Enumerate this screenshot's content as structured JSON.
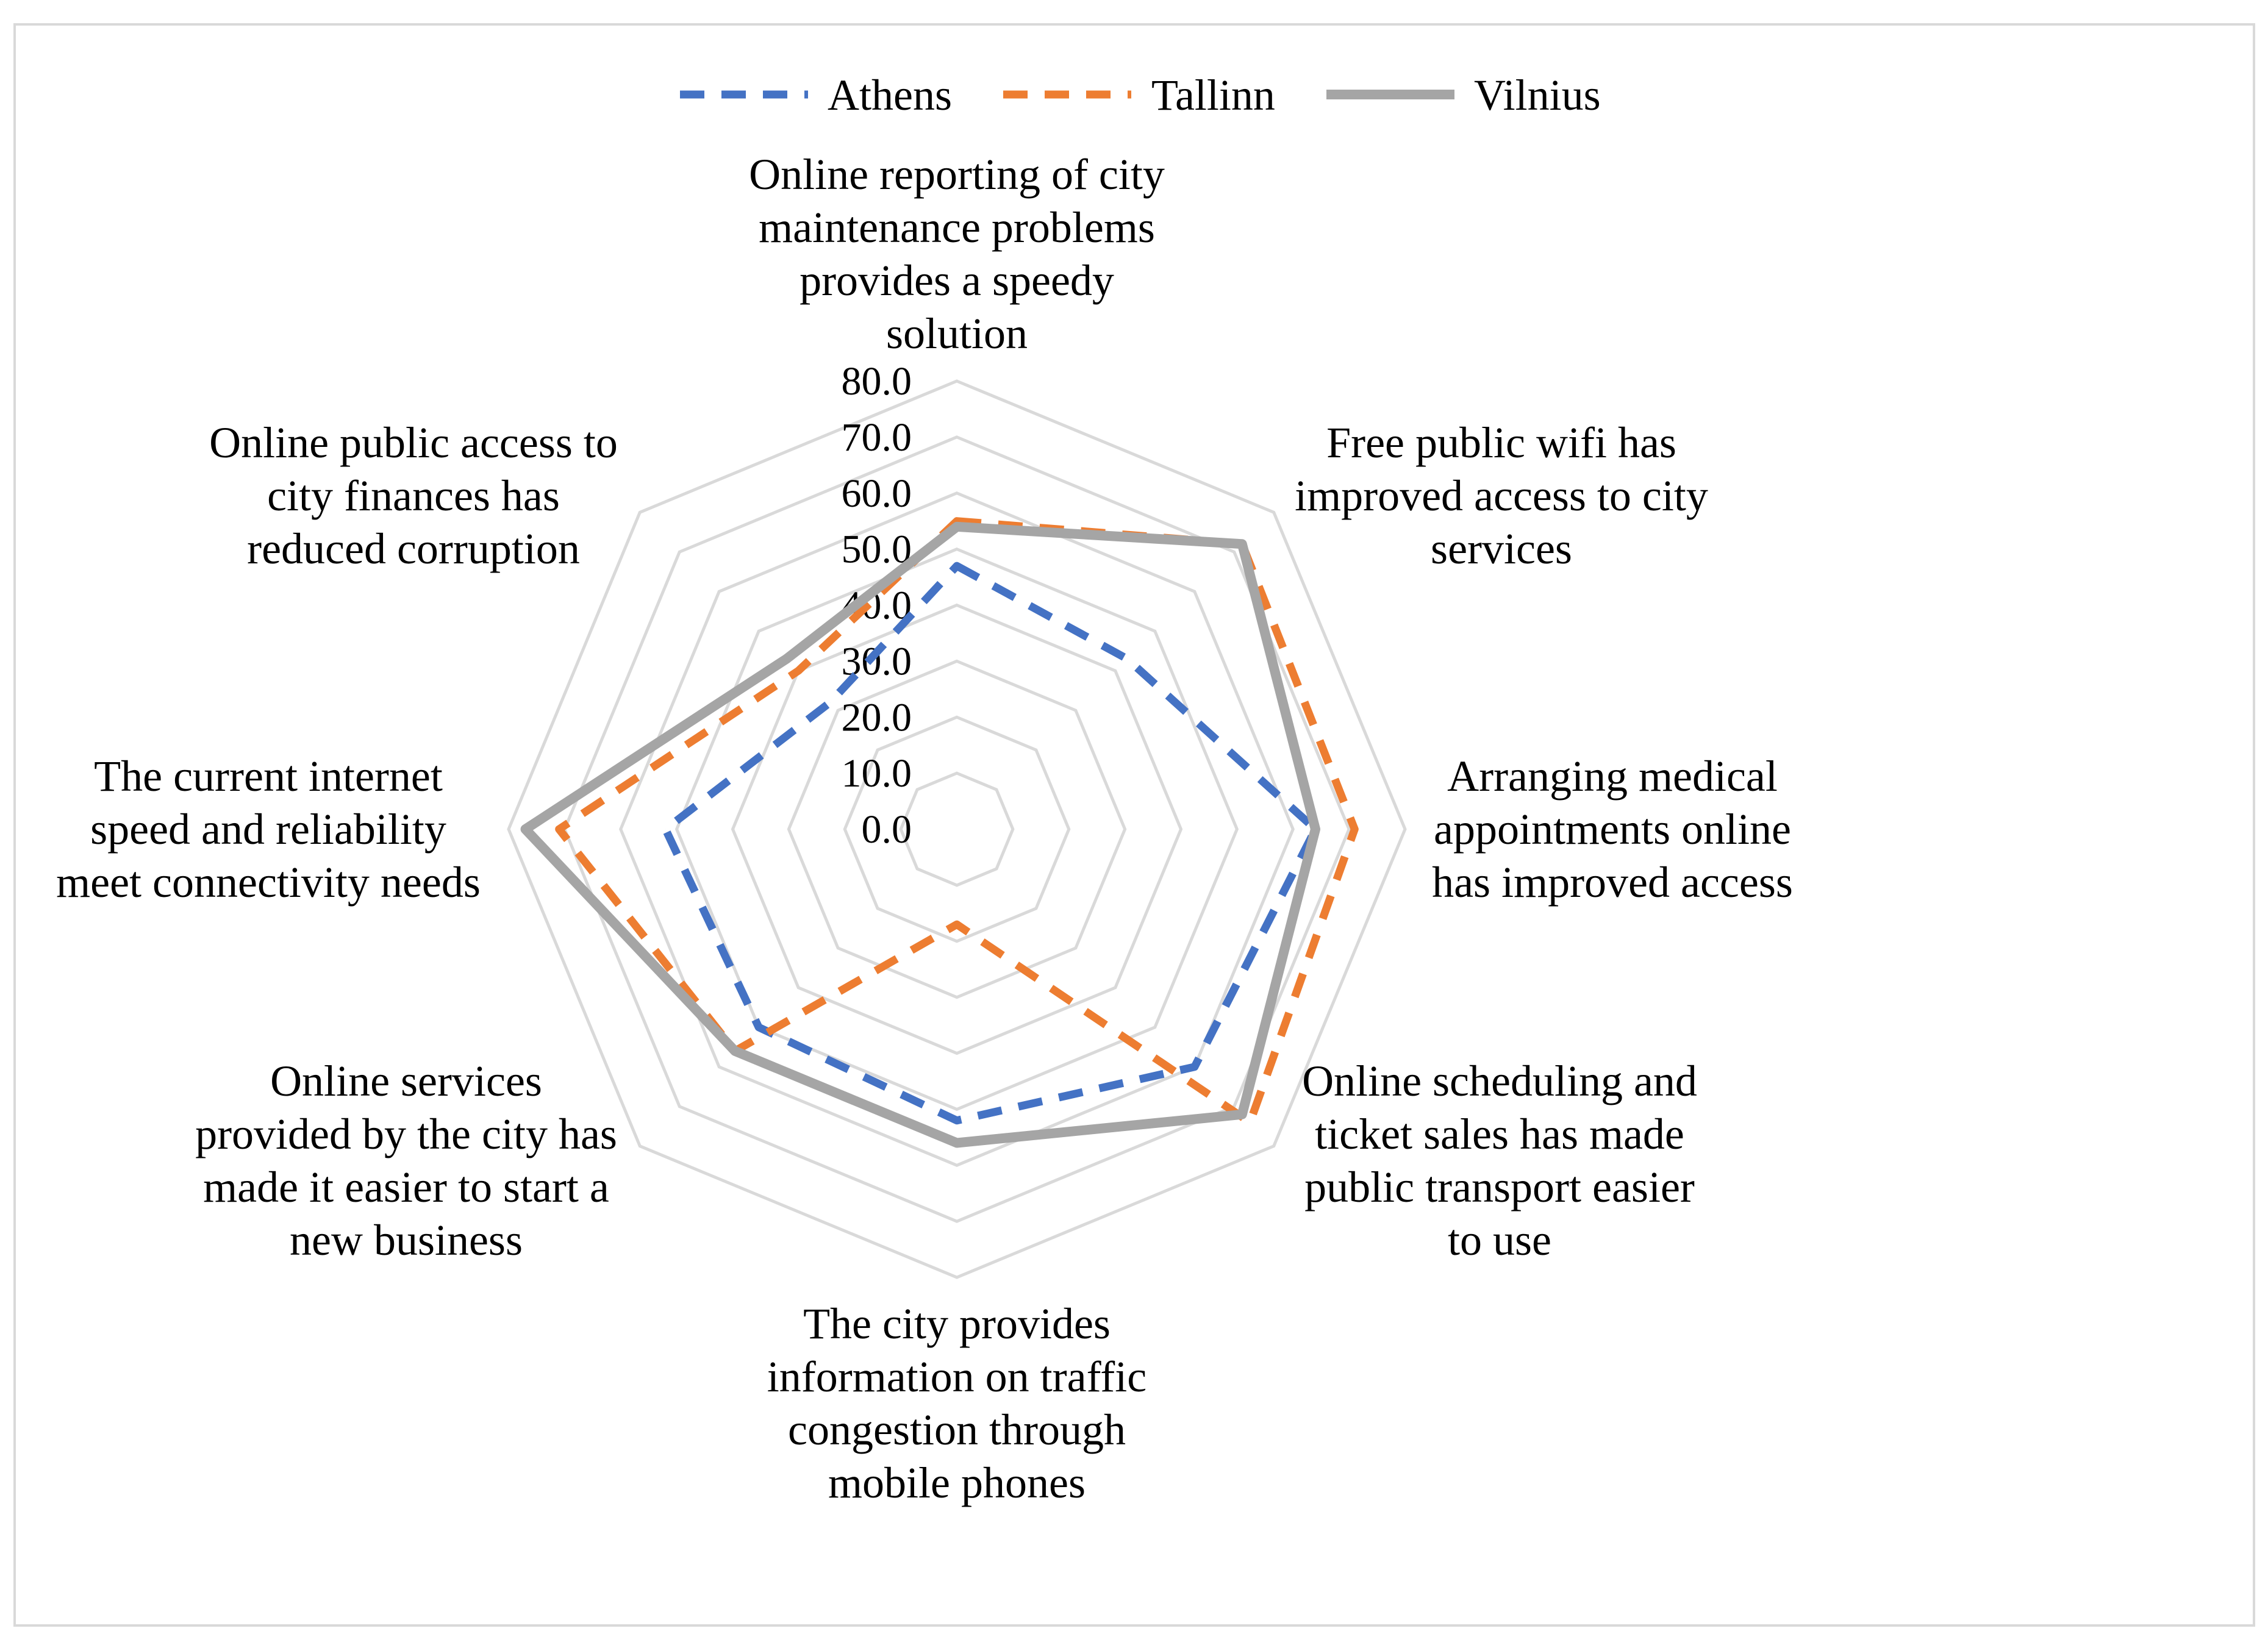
{
  "chart_data": {
    "type": "radar",
    "title": "",
    "categories": [
      [
        "Online reporting of city",
        "maintenance problems",
        "provides a speedy",
        "solution"
      ],
      [
        "Free public wifi has",
        "improved access to city",
        "services"
      ],
      [
        "Arranging medical",
        "appointments online",
        "has improved access"
      ],
      [
        "Online scheduling and",
        "ticket sales has made",
        "public transport easier",
        "to use"
      ],
      [
        "The city provides",
        "information on traffic",
        "congestion through",
        "mobile phones"
      ],
      [
        "Online services",
        "provided by the city has",
        "made it easier to start a",
        "new business"
      ],
      [
        "The current internet",
        "speed and reliability",
        "meet connectivity needs"
      ],
      [
        "Online public access to",
        "city finances has",
        "reduced corruption"
      ]
    ],
    "rlim": [
      0,
      80
    ],
    "ticks": [
      "0.0",
      "10.0",
      "20.0",
      "30.0",
      "40.0",
      "50.0",
      "60.0",
      "70.0",
      "80.0"
    ],
    "grid": true,
    "legend_position": "top",
    "series": [
      {
        "name": "Athens",
        "color": "#4472C4",
        "style": "dashed",
        "values": [
          47,
          43,
          64,
          60,
          52,
          50,
          52,
          32
        ]
      },
      {
        "name": "Tallinn",
        "color": "#ED7D31",
        "style": "dashed",
        "values": [
          55,
          72,
          71,
          74,
          17,
          56,
          71,
          40
        ]
      },
      {
        "name": "Vilnius",
        "color": "#A5A5A5",
        "style": "solid",
        "values": [
          54,
          72,
          64,
          72,
          56,
          56,
          77,
          43
        ]
      }
    ]
  }
}
